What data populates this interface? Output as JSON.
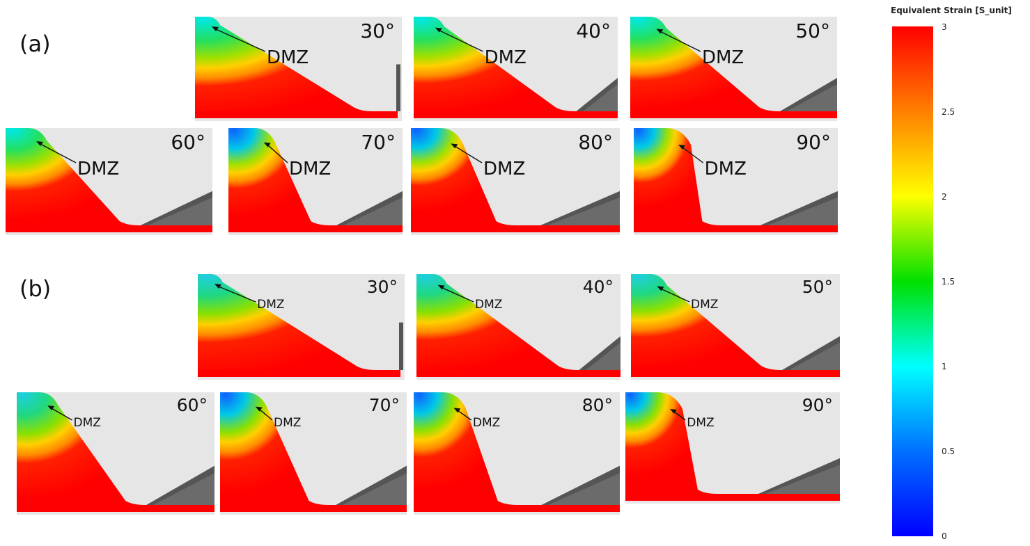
{
  "sections": [
    {
      "label": "(a)",
      "panels": [
        {
          "angle": "30°",
          "dmz": "DMZ"
        },
        {
          "angle": "40°",
          "dmz": "DMZ"
        },
        {
          "angle": "50°",
          "dmz": "DMZ"
        },
        {
          "angle": "60°",
          "dmz": "DMZ"
        },
        {
          "angle": "70°",
          "dmz": "DMZ"
        },
        {
          "angle": "80°",
          "dmz": "DMZ"
        },
        {
          "angle": "90°",
          "dmz": "DMZ"
        }
      ]
    },
    {
      "label": "(b)",
      "panels": [
        {
          "angle": "30°",
          "dmz": "DMZ"
        },
        {
          "angle": "40°",
          "dmz": "DMZ"
        },
        {
          "angle": "50°",
          "dmz": "DMZ"
        },
        {
          "angle": "60°",
          "dmz": "DMZ"
        },
        {
          "angle": "70°",
          "dmz": "DMZ"
        },
        {
          "angle": "80°",
          "dmz": "DMZ"
        },
        {
          "angle": "90°",
          "dmz": "DMZ"
        }
      ]
    }
  ],
  "colorbar": {
    "title": "Equivalent Strain [S_unit]",
    "ticks": [
      "3",
      "2.5",
      "2",
      "1.5",
      "1",
      "0.5",
      "0"
    ],
    "colors": {
      "max": "#ff0000",
      "mid": "#00e000",
      "min": "#0000ff"
    }
  }
}
